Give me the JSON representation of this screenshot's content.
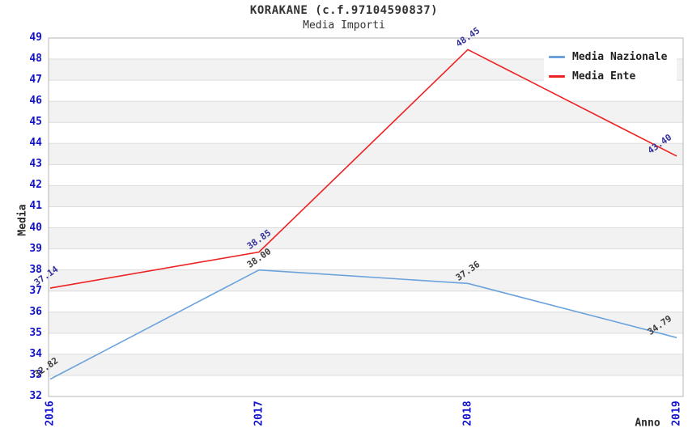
{
  "header": {
    "title": "KORAKANE (c.f.97104590837)",
    "subtitle": "Media Importi"
  },
  "legend": {
    "items": [
      {
        "label": "Media Nazionale",
        "color": "#6ba2dc"
      },
      {
        "label": "Media Ente",
        "color": "#ee2222"
      }
    ]
  },
  "chart_data": {
    "type": "line",
    "title": "KORAKANE (c.f.97104590837)",
    "subtitle": "Media Importi",
    "xlabel": "Anno",
    "ylabel": "Media",
    "x": [
      "2016",
      "2017",
      "2018",
      "2019"
    ],
    "series": [
      {
        "name": "Media Nazionale",
        "color": "#6ba2dc",
        "label_color": "#3b3b3b",
        "values": [
          32.82,
          38.0,
          37.36,
          34.79
        ]
      },
      {
        "name": "Media Ente",
        "color": "#ee2222",
        "label_color": "#333399",
        "values": [
          37.14,
          38.85,
          48.45,
          43.4
        ]
      }
    ],
    "ylim": [
      32,
      49
    ],
    "ytick_step": 1,
    "grid": true,
    "legend_position": "upper right",
    "band_colors": [
      "#ffffff",
      "#f2f2f2"
    ],
    "gridline_color": "#dcdcdc",
    "frame_color": "#b5b5b5",
    "tick_label_color": "#1313cd"
  }
}
